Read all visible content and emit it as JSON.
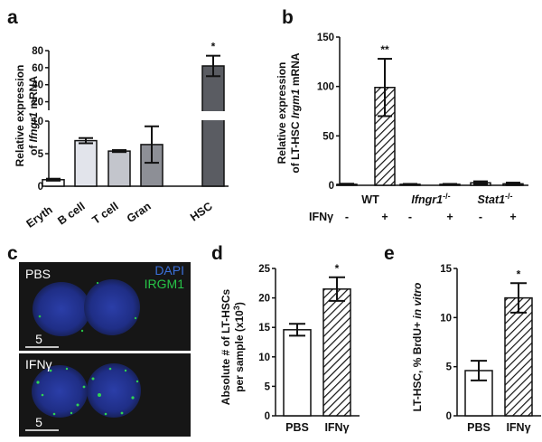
{
  "chart_data": [
    {
      "panel": "a",
      "type": "bar",
      "ylabel_line1": "Relative expression",
      "ylabel_line2_prefix": "of ",
      "ylabel_gene": "Ifngr1",
      "ylabel_line2_suffix": " mRNA",
      "categories": [
        "Eryth",
        "B cell",
        "T cell",
        "Gran",
        "HSC"
      ],
      "values": [
        1.0,
        7.0,
        5.4,
        6.4,
        62
      ],
      "errors": [
        0.15,
        0.4,
        0.15,
        2.8,
        12
      ],
      "significance": [
        "",
        "",
        "",
        "",
        "*"
      ],
      "bar_colors": [
        "#ffffff",
        "#e2e4eb",
        "#c3c5cc",
        "#8d8f96",
        "#5a5c62"
      ],
      "y_axis_break": {
        "lower_range": [
          0,
          10
        ],
        "upper_range": [
          10,
          80
        ]
      },
      "yticks_lower": [
        "0",
        "5",
        "10"
      ],
      "yticks_upper": [
        "20",
        "40",
        "60",
        "80"
      ]
    },
    {
      "panel": "b",
      "type": "bar",
      "ylabel_line1": "Relative expression",
      "ylabel_line2_prefix": "of LT-HSC ",
      "ylabel_gene": "Irgm1",
      "ylabel_line2_suffix": " mRNA",
      "ylim": [
        0,
        150
      ],
      "yticks": [
        "0",
        "50",
        "100",
        "150"
      ],
      "groups": [
        {
          "name": "WT",
          "values": [
            1.0,
            99
          ],
          "errors": [
            0.6,
            29
          ]
        },
        {
          "name_gene": "Ifngr1",
          "name_sup": "-/-",
          "values": [
            1.0,
            1.0
          ],
          "errors": [
            0.4,
            0.4
          ]
        },
        {
          "name_gene": "Stat1",
          "name_sup": "-/-",
          "values": [
            2.5,
            1.5
          ],
          "errors": [
            1.5,
            1.2
          ]
        }
      ],
      "treatment_label": "IFNγ",
      "treatment_signs": [
        "-",
        "+",
        "-",
        "+",
        "-",
        "+"
      ],
      "significance": [
        "",
        "**",
        "",
        "",
        "",
        ""
      ],
      "fill_patterns": [
        "open",
        "hatched"
      ]
    },
    {
      "panel": "d",
      "type": "bar",
      "ylabel_line1": "Absolute # of LT-HSCs",
      "ylabel_line2_prefix": "per sample (x10",
      "ylabel_sup": "3",
      "ylabel_line2_suffix": ")",
      "categories": [
        "PBS",
        "IFNγ"
      ],
      "values": [
        14.6,
        21.5
      ],
      "errors": [
        1.0,
        2.0
      ],
      "significance": [
        "",
        "*"
      ],
      "ylim": [
        0,
        25
      ],
      "yticks": [
        "0",
        "5",
        "10",
        "15",
        "20",
        "25"
      ],
      "fill_patterns": [
        "open",
        "hatched"
      ]
    },
    {
      "panel": "e",
      "type": "bar",
      "ylabel_prefix": "LT-HSC, % BrdU+ ",
      "ylabel_italic": "in vitro",
      "categories": [
        "PBS",
        "IFNγ"
      ],
      "values": [
        4.6,
        12.0
      ],
      "errors": [
        1.0,
        1.5
      ],
      "significance": [
        "",
        "*"
      ],
      "ylim": [
        0,
        15
      ],
      "yticks": [
        "0",
        "5",
        "10",
        "15"
      ],
      "fill_patterns": [
        "open",
        "hatched"
      ]
    }
  ],
  "panel_c": {
    "letter": "c",
    "top": {
      "label": "PBS",
      "legend": [
        "DAPI",
        "IRGM1"
      ],
      "legend_colors": [
        "#3b6fd8",
        "#27c447"
      ],
      "scale": "5"
    },
    "bottom": {
      "label": "IFNγ",
      "scale": "5"
    }
  },
  "panel_letters": {
    "a": "a",
    "b": "b",
    "c": "c",
    "d": "d",
    "e": "e"
  }
}
